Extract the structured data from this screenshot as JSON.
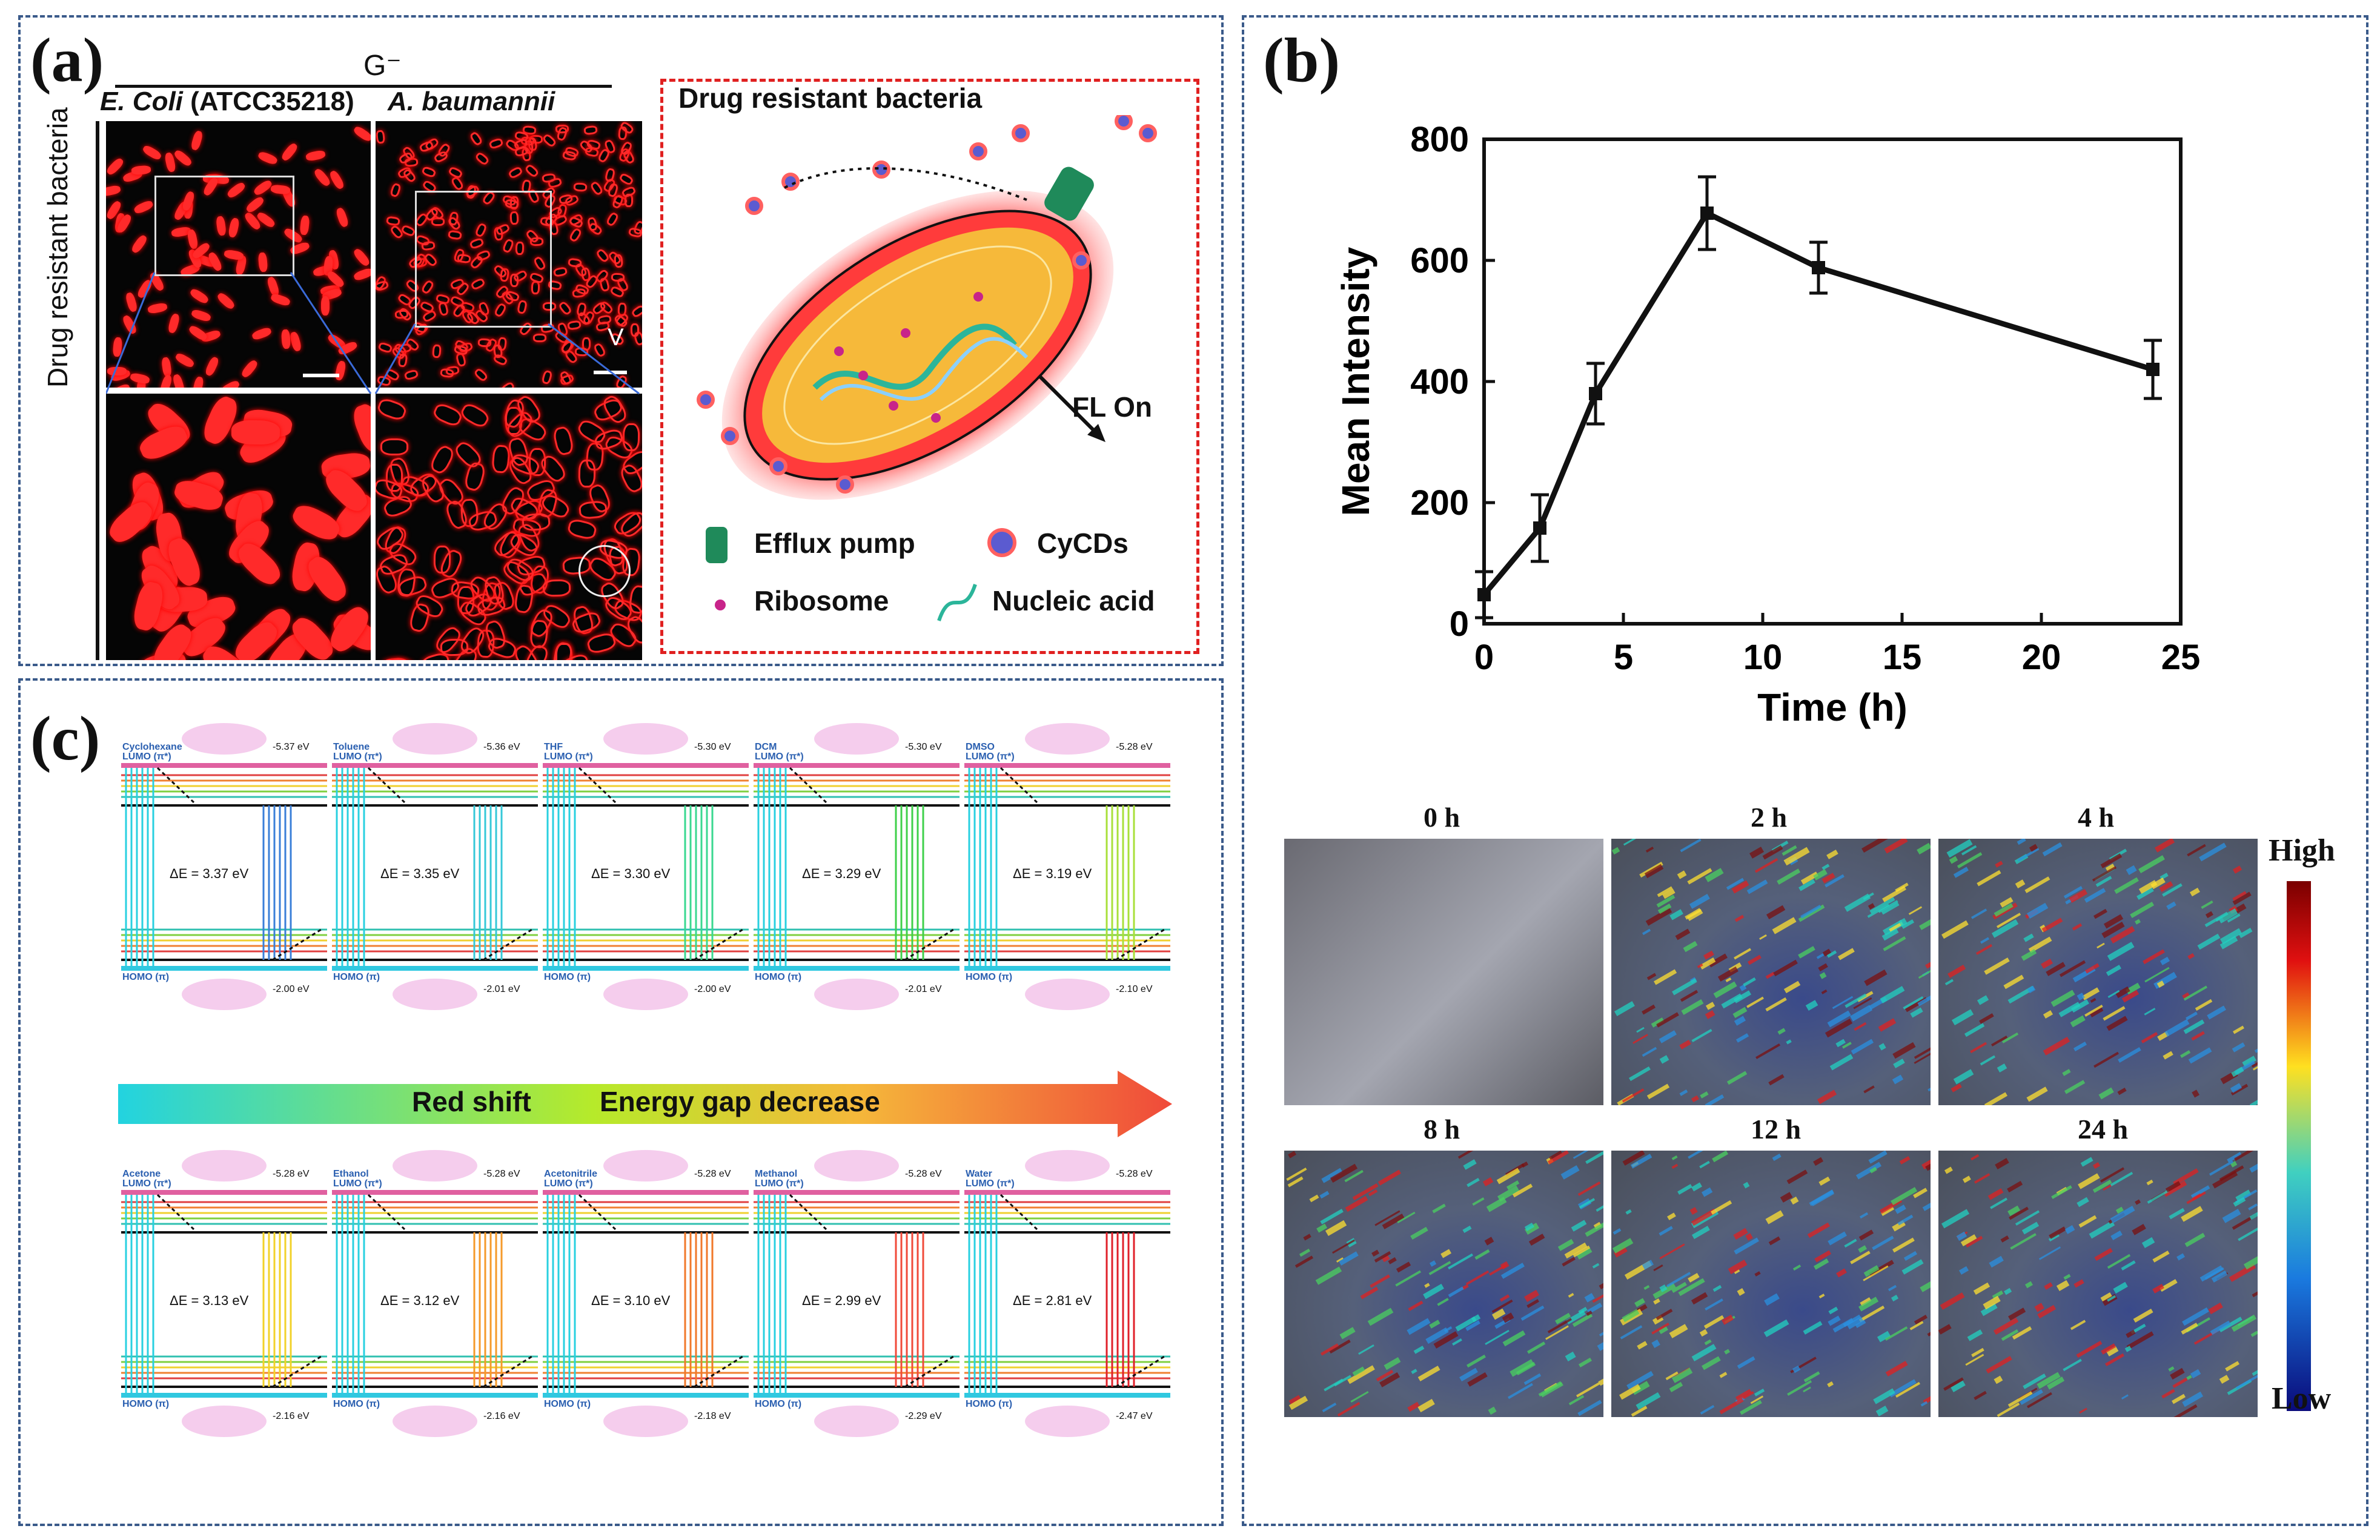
{
  "panel_a": {
    "label": "(a)",
    "gram": "G⁻",
    "strain1_species": "E. Coli",
    "strain1_code": "(ATCC35218)",
    "strain2": "A. baumannii",
    "side_label": "Drug resistant bacteria",
    "arrow_mark": "V",
    "diagram_title": "Drug resistant bacteria",
    "fl_label": "FL On",
    "legend": [
      "Efflux pump",
      "CyCDs",
      "Ribosome",
      "Nucleic acid"
    ],
    "colors": {
      "fluor": "#ff2a2a",
      "cell_outer": "#ff3b3b",
      "cell_inner": "#f6b93a",
      "pump": "#1f8a5a",
      "cycd": "#5b5bd0"
    }
  },
  "panel_b": {
    "label": "(b)",
    "heatmap_labels": [
      "0 h",
      "2 h",
      "4 h",
      "8 h",
      "12 h",
      "24 h"
    ],
    "colorbar_high": "High",
    "colorbar_low": "Low"
  },
  "panel_c": {
    "label": "(c)",
    "banner_left": "Red shift",
    "banner_right": "Energy gap decrease",
    "lumo_label": "LUMO (π*)",
    "homo_label": "HOMO (π)",
    "solvents": [
      {
        "name": "Cyclohexane",
        "lumo": "-5.37 eV",
        "homo": "-2.00 eV",
        "gap": "ΔE = 3.37 eV",
        "color": "#3a7fd8"
      },
      {
        "name": "Toluene",
        "lumo": "-5.36 eV",
        "homo": "-2.01 eV",
        "gap": "ΔE = 3.35 eV",
        "color": "#35c8d8"
      },
      {
        "name": "THF",
        "lumo": "-5.30 eV",
        "homo": "-2.00 eV",
        "gap": "ΔE = 3.30 eV",
        "color": "#3ad890"
      },
      {
        "name": "DCM",
        "lumo": "-5.30 eV",
        "homo": "-2.01 eV",
        "gap": "ΔE = 3.29 eV",
        "color": "#3fd04a"
      },
      {
        "name": "DMSO",
        "lumo": "-5.28 eV",
        "homo": "-2.10 eV",
        "gap": "ΔE = 3.19 eV",
        "color": "#a8e03a"
      },
      {
        "name": "Acetone",
        "lumo": "-5.28 eV",
        "homo": "-2.16 eV",
        "gap": "ΔE = 3.13 eV",
        "color": "#f2d22a"
      },
      {
        "name": "Ethanol",
        "lumo": "-5.28 eV",
        "homo": "-2.16 eV",
        "gap": "ΔE = 3.12 eV",
        "color": "#f59a2a"
      },
      {
        "name": "Acetonitrile",
        "lumo": "-5.28 eV",
        "homo": "-2.18 eV",
        "gap": "ΔE = 3.10 eV",
        "color": "#f0782a"
      },
      {
        "name": "Methanol",
        "lumo": "-5.28 eV",
        "homo": "-2.29 eV",
        "gap": "ΔE = 2.99 eV",
        "color": "#f04a3a"
      },
      {
        "name": "Water",
        "lumo": "-5.28 eV",
        "homo": "-2.47 eV",
        "gap": "ΔE = 2.81 eV",
        "color": "#e0202a"
      }
    ]
  },
  "chart_data": {
    "type": "line",
    "title": "",
    "xlabel": "Time (h)",
    "ylabel": "Mean Intensity",
    "x": [
      0,
      2,
      4,
      8,
      12,
      24
    ],
    "values": [
      48,
      158,
      380,
      678,
      588,
      420
    ],
    "errors": [
      38,
      55,
      50,
      60,
      42,
      48
    ],
    "xlim": [
      0,
      25
    ],
    "ylim": [
      0,
      800
    ],
    "xticks": [
      0,
      5,
      10,
      15,
      20,
      25
    ],
    "yticks": [
      0,
      200,
      400,
      600,
      800
    ],
    "grid": false
  }
}
